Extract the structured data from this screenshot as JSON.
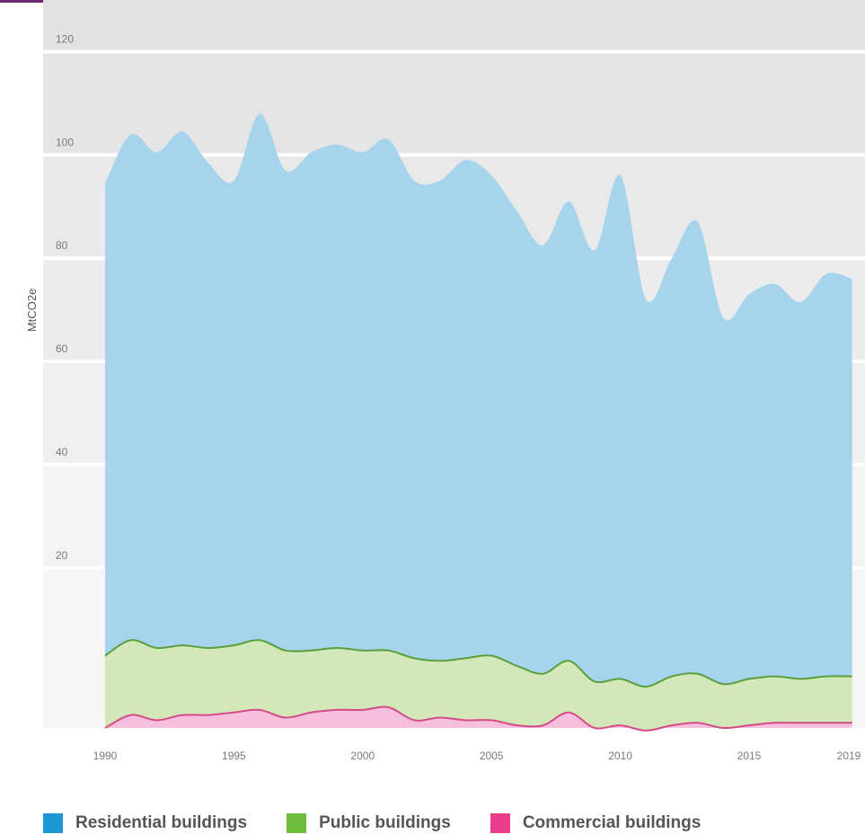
{
  "chart_data": {
    "type": "area",
    "stacked": true,
    "title": "",
    "xlabel": "",
    "ylabel": "MtCO2e",
    "x": [
      1990,
      1991,
      1992,
      1993,
      1994,
      1995,
      1996,
      1997,
      1998,
      1999,
      2000,
      2001,
      2002,
      2003,
      2004,
      2005,
      2006,
      2007,
      2008,
      2009,
      2010,
      2011,
      2012,
      2013,
      2014,
      2015,
      2016,
      2017,
      2018,
      2019
    ],
    "xlim": [
      1990,
      2019.5
    ],
    "ylim": [
      -11,
      130
    ],
    "yticks": [
      20,
      40,
      60,
      80,
      100,
      120
    ],
    "xticks": [
      1990,
      1995,
      2000,
      2005,
      2010,
      2015,
      2019
    ],
    "grid": "horizontal bands",
    "legend_position": "bottom",
    "series": [
      {
        "name": "Commercial buildings",
        "color": "#f5bfdd",
        "line_color": "#d64a8a",
        "values": [
          0.0,
          2.5,
          1.5,
          2.5,
          2.5,
          3.0,
          3.5,
          2.0,
          3.0,
          3.5,
          3.5,
          4.0,
          1.5,
          2.0,
          1.5,
          1.5,
          0.5,
          0.5,
          3.0,
          0.0,
          0.5,
          -0.5,
          0.5,
          1.0,
          0.0,
          0.5,
          1.0,
          1.0,
          1.0,
          1.0
        ]
      },
      {
        "name": "Public buildings",
        "color": "#d3e8b8",
        "line_color": "#5aa03a",
        "values": [
          14.0,
          14.5,
          14.0,
          13.5,
          13.0,
          13.0,
          13.5,
          13.0,
          12.0,
          12.0,
          11.5,
          11.0,
          12.0,
          11.0,
          12.0,
          12.5,
          11.5,
          10.0,
          10.0,
          9.0,
          9.0,
          8.5,
          9.5,
          9.5,
          8.5,
          9.0,
          9.0,
          8.5,
          9.0,
          9.0
        ]
      },
      {
        "name": "Residential buildings",
        "color": "#a6d4ec",
        "line_color": "#a6d4ec",
        "values": [
          91.5,
          98.0,
          96.0,
          99.5,
          94.0,
          90.0,
          102.0,
          93.0,
          96.5,
          97.5,
          96.5,
          99.0,
          92.5,
          93.0,
          96.5,
          93.0,
          88.0,
          83.0,
          89.0,
          83.5,
          97.5,
          75.0,
          81.0,
          87.5,
          71.0,
          74.5,
          76.0,
          73.0,
          78.0,
          77.0
        ]
      }
    ],
    "colors": {
      "top_border": "#6b2a72",
      "band_light": "#f6f6f6",
      "band_dark": "#e2e2e2",
      "tick_text": "#7a7a7a",
      "legend_text": "#555555",
      "residential_swatch": "#1f96d6",
      "public_swatch": "#6cbd3c",
      "commercial_swatch": "#e83e8c"
    }
  },
  "legend": [
    {
      "label": "Residential buildings",
      "swatch": "#1f96d6"
    },
    {
      "label": "Public buildings",
      "swatch": "#6cbd3c"
    },
    {
      "label": "Commercial buildings",
      "swatch": "#e83e8c"
    }
  ]
}
